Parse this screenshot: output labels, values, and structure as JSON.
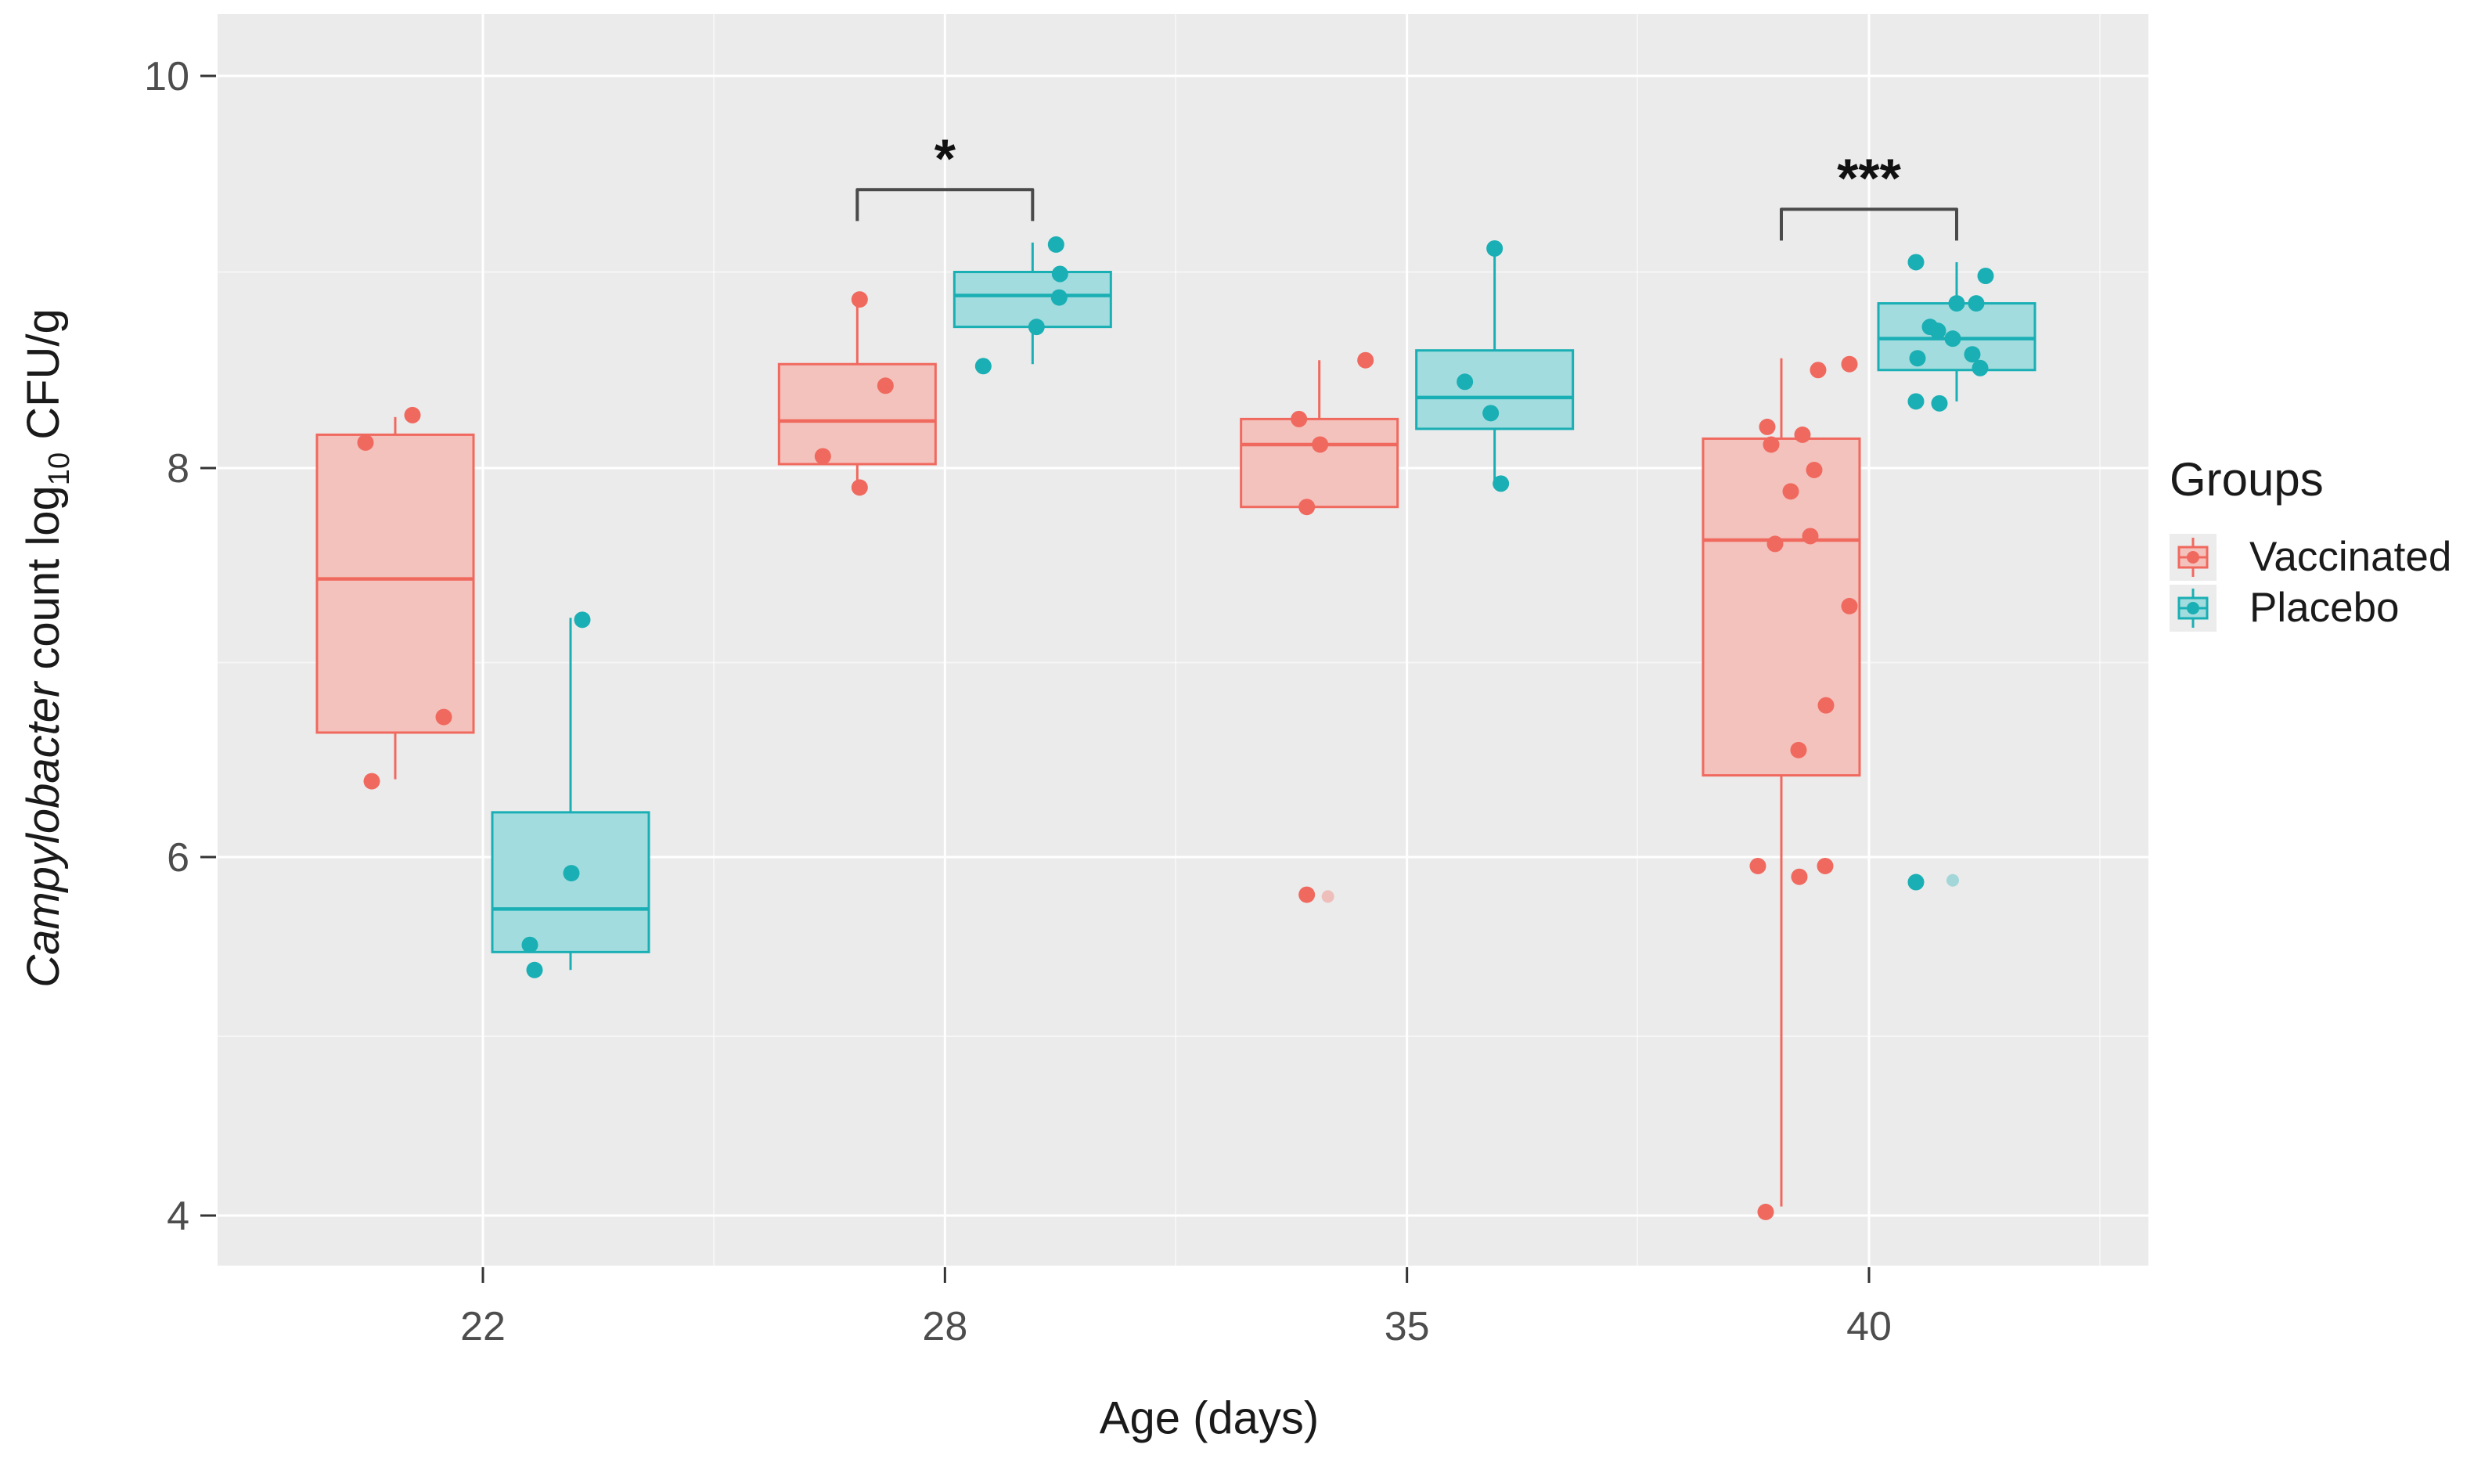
{
  "colors": {
    "vaccinated": "#F0695F",
    "vaccinated_fill": "#F3C2BC",
    "placebo": "#1AAFB4",
    "placebo_fill": "#A2DCDE",
    "panel_bg": "#EBEBEB",
    "grid_major": "#FFFFFF",
    "axis_text": "#4D4D4D",
    "bracket": "#4A4A4A",
    "star": "#111111",
    "background": "#FFFFFF"
  },
  "chart_data": {
    "type": "boxplot",
    "title": "",
    "xlabel": "Age (days)",
    "ylabel": "Campylobacter count log10 CFU/g",
    "ylabel_parts": {
      "italic": "Campylobacter",
      "mid": " count log",
      "sub": "10",
      "unit": " CFU/g"
    },
    "categories": [
      "22",
      "28",
      "35",
      "40"
    ],
    "y_ticks": [
      "10",
      "8",
      "6",
      "4"
    ],
    "y_tick_values": [
      10,
      8,
      6,
      4
    ],
    "y_minor_values": [
      9,
      7,
      5
    ],
    "ylim": [
      3.72,
      10.32
    ],
    "grid": true,
    "legend": {
      "title": "Groups",
      "position": "right",
      "entries": [
        "Vaccinated",
        "Placebo"
      ]
    },
    "series": [
      {
        "name": "Vaccinated",
        "boxes": [
          {
            "category": "22",
            "whisker_low": 6.4,
            "q1": 6.64,
            "median": 7.43,
            "q3": 8.17,
            "whisker_high": 8.26,
            "points": [
              {
                "dx": 22,
                "y": 8.27
              },
              {
                "dx": -38,
                "y": 8.13
              },
              {
                "dx": 62,
                "y": 6.72
              },
              {
                "dx": -30,
                "y": 6.39
              }
            ]
          },
          {
            "category": "28",
            "whisker_low": 7.88,
            "q1": 8.02,
            "median": 8.24,
            "q3": 8.53,
            "whisker_high": 8.87,
            "points": [
              {
                "dx": 3,
                "y": 8.86
              },
              {
                "dx": 36,
                "y": 8.42
              },
              {
                "dx": -44,
                "y": 8.06
              },
              {
                "dx": 3,
                "y": 7.9
              }
            ]
          },
          {
            "category": "35",
            "whisker_low": 7.8,
            "q1": 7.8,
            "median": 8.12,
            "q3": 8.25,
            "whisker_high": 8.55,
            "points": [
              {
                "dx": 59,
                "y": 8.55
              },
              {
                "dx": -26,
                "y": 8.25
              },
              {
                "dx": 1,
                "y": 8.12
              },
              {
                "dx": -16,
                "y": 7.8
              },
              {
                "dx": -16,
                "y": 5.79
              },
              {
                "dx": 11,
                "y": 5.78,
                "faint": true
              }
            ]
          },
          {
            "category": "40",
            "whisker_low": 4.05,
            "q1": 6.42,
            "median": 7.63,
            "q3": 8.15,
            "whisker_high": 8.56,
            "points": [
              {
                "dx": 47,
                "y": 8.5
              },
              {
                "dx": 87,
                "y": 8.53
              },
              {
                "dx": -18,
                "y": 8.21
              },
              {
                "dx": -13,
                "y": 8.12
              },
              {
                "dx": 27,
                "y": 8.17
              },
              {
                "dx": 42,
                "y": 7.99
              },
              {
                "dx": 12,
                "y": 7.88
              },
              {
                "dx": -8,
                "y": 7.61
              },
              {
                "dx": 37,
                "y": 7.65
              },
              {
                "dx": 87,
                "y": 7.29
              },
              {
                "dx": 57,
                "y": 6.78
              },
              {
                "dx": 22,
                "y": 6.55
              },
              {
                "dx": -30,
                "y": 5.95
              },
              {
                "dx": 23,
                "y": 5.89
              },
              {
                "dx": 56,
                "y": 5.95
              },
              {
                "dx": -20,
                "y": 4.02
              }
            ]
          }
        ]
      },
      {
        "name": "Placebo",
        "boxes": [
          {
            "category": "22",
            "whisker_low": 5.37,
            "q1": 5.47,
            "median": 5.71,
            "q3": 6.23,
            "whisker_high": 7.23,
            "points": [
              {
                "dx": 15,
                "y": 7.22
              },
              {
                "dx": 1,
                "y": 5.91
              },
              {
                "dx": -52,
                "y": 5.51
              },
              {
                "dx": -46,
                "y": 5.37
              }
            ]
          },
          {
            "category": "28",
            "whisker_low": 8.53,
            "q1": 8.72,
            "median": 8.88,
            "q3": 9.0,
            "whisker_high": 9.15,
            "points": [
              {
                "dx": 30,
                "y": 9.14
              },
              {
                "dx": 35,
                "y": 8.99
              },
              {
                "dx": 34,
                "y": 8.87
              },
              {
                "dx": 5,
                "y": 8.72
              },
              {
                "dx": -63,
                "y": 8.52
              }
            ]
          },
          {
            "category": "35",
            "whisker_low": 7.92,
            "q1": 8.2,
            "median": 8.36,
            "q3": 8.6,
            "whisker_high": 9.12,
            "points": [
              {
                "dx": 0,
                "y": 9.12
              },
              {
                "dx": -38,
                "y": 8.44
              },
              {
                "dx": -5,
                "y": 8.28
              },
              {
                "dx": 8,
                "y": 7.92
              }
            ]
          },
          {
            "category": "40",
            "whisker_low": 8.34,
            "q1": 8.5,
            "median": 8.66,
            "q3": 8.84,
            "whisker_high": 9.05,
            "points": [
              {
                "dx": -52,
                "y": 9.05
              },
              {
                "dx": 37,
                "y": 8.98
              },
              {
                "dx": 0,
                "y": 8.84
              },
              {
                "dx": 25,
                "y": 8.84
              },
              {
                "dx": -34,
                "y": 8.72
              },
              {
                "dx": -24,
                "y": 8.7
              },
              {
                "dx": -5,
                "y": 8.66
              },
              {
                "dx": -50,
                "y": 8.56
              },
              {
                "dx": 20,
                "y": 8.58
              },
              {
                "dx": 30,
                "y": 8.51
              },
              {
                "dx": -52,
                "y": 8.34
              },
              {
                "dx": -22,
                "y": 8.33
              },
              {
                "dx": -52,
                "y": 5.86
              },
              {
                "dx": -5,
                "y": 5.87,
                "faint": true
              }
            ]
          }
        ]
      }
    ],
    "significance": [
      {
        "category": "28",
        "label": "*",
        "bar_y": 9.42,
        "leg_y": 9.26
      },
      {
        "category": "40",
        "label": "***",
        "bar_y": 9.32,
        "leg_y": 9.16
      }
    ]
  }
}
